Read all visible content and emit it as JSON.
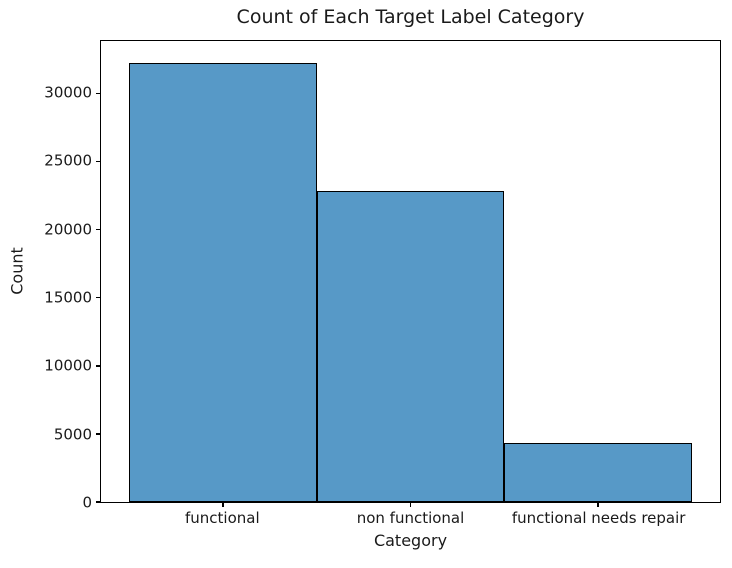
{
  "chart_data": {
    "type": "bar",
    "title": "Count of Each Target Label Category",
    "xlabel": "Category",
    "ylabel": "Count",
    "categories": [
      "functional",
      "non functional",
      "functional needs repair"
    ],
    "values": [
      32259,
      22824,
      4317
    ],
    "yticks": [
      0,
      5000,
      10000,
      15000,
      20000,
      25000,
      30000
    ],
    "ylim": [
      0,
      33872
    ],
    "bar_color": "#5799c7",
    "bar_edge_color": "#000000",
    "grid": false,
    "legend": false
  }
}
